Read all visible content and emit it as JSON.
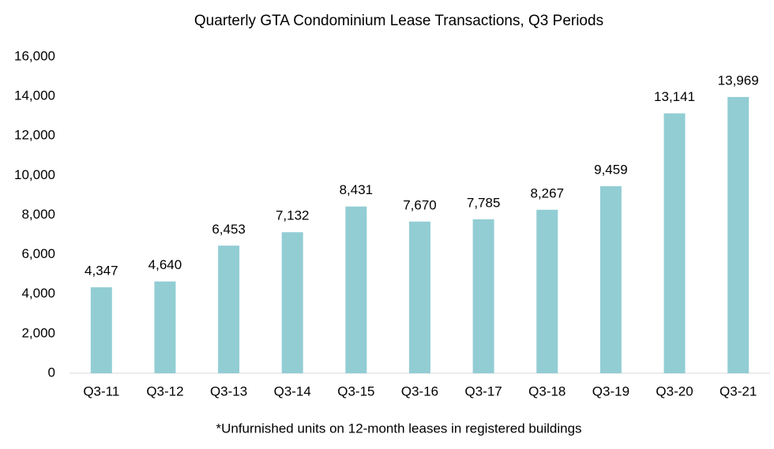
{
  "chart_data": {
    "type": "bar",
    "title": "Quarterly GTA Condominium Lease Transactions, Q3 Periods",
    "footnote": "*Unfurnished units on 12-month leases in registered buildings",
    "categories": [
      "Q3-11",
      "Q3-12",
      "Q3-13",
      "Q3-14",
      "Q3-15",
      "Q3-16",
      "Q3-17",
      "Q3-18",
      "Q3-19",
      "Q3-20",
      "Q3-21"
    ],
    "values": [
      4347,
      4640,
      6453,
      7132,
      8431,
      7670,
      7785,
      8267,
      9459,
      13141,
      13969
    ],
    "value_labels": [
      "4,347",
      "4,640",
      "6,453",
      "7,132",
      "8,431",
      "7,670",
      "7,785",
      "8,267",
      "9,459",
      "13,141",
      "13,969"
    ],
    "color": "#92cdd4",
    "ylim": [
      0,
      16000
    ],
    "yticks": [
      0,
      {
        "value": 2000,
        "label": "2,000"
      },
      {
        "value": 4000,
        "label": "4,000"
      },
      {
        "value": 6000,
        "label": "6,000"
      },
      {
        "value": 8000,
        "label": "8,000"
      },
      {
        "value": 10000,
        "label": "10,000"
      },
      {
        "value": 12000,
        "label": "12,000"
      },
      {
        "value": 14000,
        "label": "14,000"
      },
      {
        "value": 16000,
        "label": "16,000"
      }
    ],
    "grid": false
  }
}
